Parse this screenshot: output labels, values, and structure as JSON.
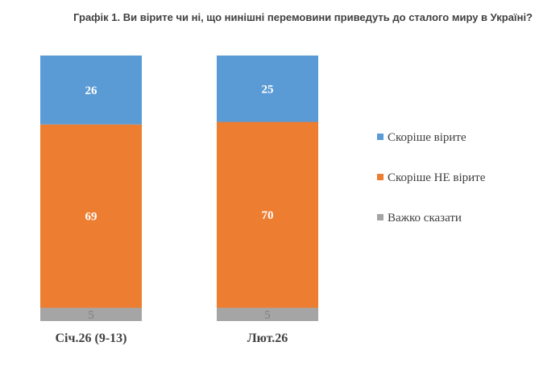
{
  "chart_data": {
    "type": "bar",
    "stacked": true,
    "title": "Графік 1. Ви вірите чи ні, що нинішні перемовини приведуть до сталого миру в Україні?",
    "categories": [
      "Січ.26 (9-13)",
      "Лют.26"
    ],
    "series": [
      {
        "name": "Скоріше вірите",
        "values": [
          26,
          25
        ],
        "color": "#5b9bd5"
      },
      {
        "name": "Скоріше НЕ вірите",
        "values": [
          69,
          70
        ],
        "color": "#ed7d31"
      },
      {
        "name": "Важко сказати",
        "values": [
          5,
          5
        ],
        "color": "#a5a5a5"
      }
    ],
    "ylim": [
      0,
      100
    ],
    "grid": false,
    "legend": "right"
  }
}
